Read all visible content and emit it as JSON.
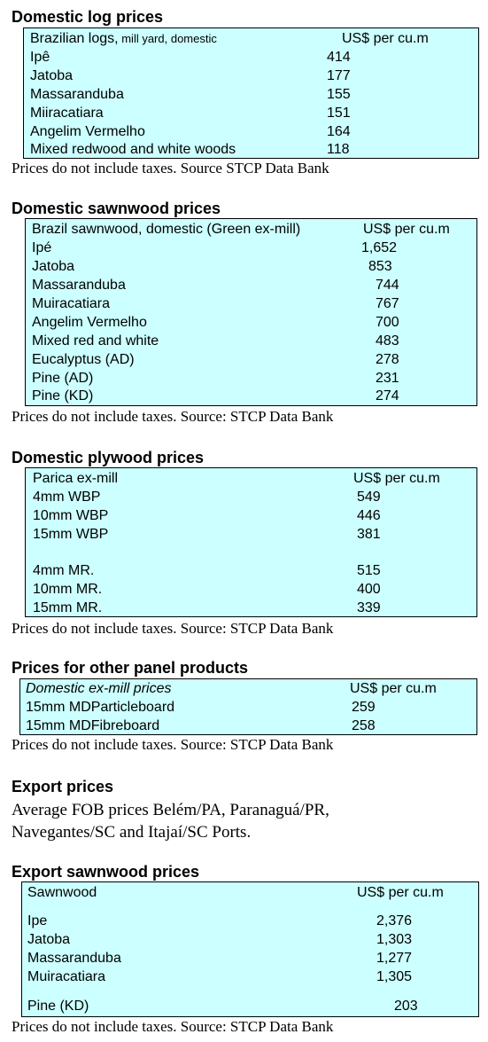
{
  "sections": {
    "logs": {
      "title": "Domestic log prices",
      "header_name_main": "Brazilian logs,",
      "header_name_small": " mill yard, domestic",
      "header_unit": "US$ per cu.m",
      "rows": [
        {
          "name": "Ipê",
          "value": "414"
        },
        {
          "name": "Jatoba",
          "value": "177"
        },
        {
          "name": "Massaranduba",
          "value": "155"
        },
        {
          "name": "Miiracatiara",
          "value": "151"
        },
        {
          "name": "Angelim Vermelho",
          "value": "164"
        },
        {
          "name": "Mixed redwood and white woods",
          "value": "118"
        }
      ],
      "note": "Prices do not include taxes. Source STCP Data Bank"
    },
    "sawnwood": {
      "title": "Domestic sawnwood prices",
      "header_name": "Brazil sawnwood, domestic (Green ex-mill)",
      "header_unit": "US$ per cu.m",
      "rows": [
        {
          "name": "Ipé",
          "value": "1,652"
        },
        {
          "name": "Jatoba",
          "value": "853"
        },
        {
          "name": "Massaranduba",
          "value": "744"
        },
        {
          "name": "Muiracatiara",
          "value": "767"
        },
        {
          "name": "Angelim Vermelho",
          "value": "700"
        },
        {
          "name": "Mixed red and white",
          "value": "483"
        },
        {
          "name": "Eucalyptus (AD)",
          "value": "278"
        },
        {
          "name": "Pine (AD)",
          "value": "231"
        },
        {
          "name": "Pine (KD)",
          "value": "274"
        }
      ],
      "note": "Prices do not include taxes. Source: STCP Data Bank"
    },
    "plywood": {
      "title": "Domestic plywood prices",
      "header_name": "Parica ex-mill",
      "header_unit": "US$ per cu.m",
      "rows": [
        {
          "name": "4mm WBP",
          "value": "549"
        },
        {
          "name": "10mm WBP",
          "value": "446"
        },
        {
          "name": "15mm WBP",
          "value": "381"
        },
        {
          "name": "4mm MR.",
          "value": "515"
        },
        {
          "name": "10mm MR.",
          "value": "400"
        },
        {
          "name": "15mm MR.",
          "value": "339"
        }
      ],
      "note": "Prices do not include taxes. Source: STCP Data Bank"
    },
    "panels": {
      "title": "Prices for other panel products",
      "header_name": "Domestic ex-mill prices",
      "header_unit": "US$ per cu.m",
      "rows": [
        {
          "name": "15mm MDParticleboard",
          "value": "259"
        },
        {
          "name": "15mm MDFibreboard",
          "value": "258"
        }
      ],
      "note": "Prices do not include taxes. Source: STCP Data Bank"
    },
    "export": {
      "title": "Export prices",
      "text": "Average FOB prices Belém/PA, Paranaguá/PR, Navegantes/SC and Itajaí/SC Ports."
    },
    "export_sawnwood": {
      "title": "Export sawnwood prices",
      "header_name": "Sawnwood",
      "header_unit": "US$ per cu.m",
      "rows": [
        {
          "name": "Ipe",
          "value": "2,376"
        },
        {
          "name": "Jatoba",
          "value": "1,303"
        },
        {
          "name": "Massaranduba",
          "value": "1,277"
        },
        {
          "name": "Muiracatiara",
          "value": "1,305"
        },
        {
          "name": "Pine (KD)",
          "value": "203"
        }
      ],
      "note": "Prices do not include taxes. Source: STCP Data Bank"
    }
  }
}
